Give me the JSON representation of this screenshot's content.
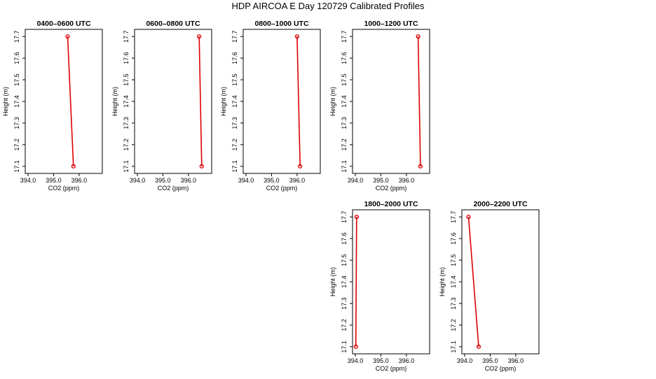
{
  "title": "HDP AIRCOA E  Day 120729  Calibrated Profiles",
  "chart_data": [
    {
      "type": "line",
      "title": "0400–0600 UTC",
      "xlabel": "CO2 (ppm)",
      "ylabel": "Height (m)",
      "xlim": [
        394.0,
        396.8
      ],
      "ylim": [
        17.08,
        17.72
      ],
      "x_ticks": [
        "394.0",
        "395.0",
        "396.0"
      ],
      "y_ticks": [
        "17.1",
        "17.2",
        "17.3",
        "17.4",
        "17.5",
        "17.6",
        "17.7"
      ],
      "color": "#dd0000",
      "points": [
        {
          "x": 395.55,
          "y": 17.7
        },
        {
          "x": 395.78,
          "y": 17.1
        }
      ]
    },
    {
      "type": "line",
      "title": "0600–0800 UTC",
      "xlabel": "CO2 (ppm)",
      "ylabel": "Height (m)",
      "xlim": [
        394.0,
        396.8
      ],
      "ylim": [
        17.08,
        17.72
      ],
      "x_ticks": [
        "394.0",
        "395.0",
        "396.0"
      ],
      "y_ticks": [
        "17.1",
        "17.2",
        "17.3",
        "17.4",
        "17.5",
        "17.6",
        "17.7"
      ],
      "color": "#dd0000",
      "points": [
        {
          "x": 396.42,
          "y": 17.7
        },
        {
          "x": 396.52,
          "y": 17.1
        }
      ]
    },
    {
      "type": "line",
      "title": "0800–1000 UTC",
      "xlabel": "CO2 (ppm)",
      "ylabel": "Height (m)",
      "xlim": [
        394.0,
        396.8
      ],
      "ylim": [
        17.08,
        17.72
      ],
      "x_ticks": [
        "394.0",
        "395.0",
        "396.0"
      ],
      "y_ticks": [
        "17.1",
        "17.2",
        "17.3",
        "17.4",
        "17.5",
        "17.6",
        "17.7"
      ],
      "color": "#dd0000",
      "points": [
        {
          "x": 396.0,
          "y": 17.7
        },
        {
          "x": 396.12,
          "y": 17.1
        }
      ]
    },
    {
      "type": "line",
      "title": "1000–1200 UTC",
      "xlabel": "CO2 (ppm)",
      "ylabel": "Height (m)",
      "xlim": [
        394.0,
        396.8
      ],
      "ylim": [
        17.08,
        17.72
      ],
      "x_ticks": [
        "394.0",
        "395.0",
        "396.0"
      ],
      "y_ticks": [
        "17.1",
        "17.2",
        "17.3",
        "17.4",
        "17.5",
        "17.6",
        "17.7"
      ],
      "color": "#dd0000",
      "points": [
        {
          "x": 396.46,
          "y": 17.7
        },
        {
          "x": 396.55,
          "y": 17.1
        }
      ]
    },
    {
      "type": "line",
      "title": "1800–2000 UTC",
      "xlabel": "CO2 (ppm)",
      "ylabel": "Height (m)",
      "xlim": [
        394.0,
        396.8
      ],
      "ylim": [
        17.08,
        17.72
      ],
      "x_ticks": [
        "394.0",
        "395.0",
        "396.0"
      ],
      "y_ticks": [
        "17.1",
        "17.2",
        "17.3",
        "17.4",
        "17.5",
        "17.6",
        "17.7"
      ],
      "color": "#dd0000",
      "points": [
        {
          "x": 394.05,
          "y": 17.7
        },
        {
          "x": 394.02,
          "y": 17.1
        }
      ]
    },
    {
      "type": "line",
      "title": "2000–2200 UTC",
      "xlabel": "CO2 (ppm)",
      "ylabel": "Height (m)",
      "xlim": [
        394.0,
        396.8
      ],
      "ylim": [
        17.08,
        17.72
      ],
      "x_ticks": [
        "394.0",
        "395.0",
        "396.0"
      ],
      "y_ticks": [
        "17.1",
        "17.2",
        "17.3",
        "17.4",
        "17.5",
        "17.6",
        "17.7"
      ],
      "color": "#dd0000",
      "points": [
        {
          "x": 394.15,
          "y": 17.7
        },
        {
          "x": 394.55,
          "y": 17.1
        }
      ]
    }
  ]
}
